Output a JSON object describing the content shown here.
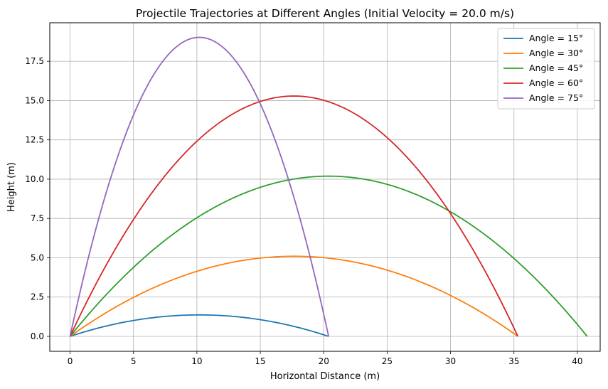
{
  "chart_data": {
    "type": "line",
    "title": "Projectile Trajectories at Different Angles (Initial Velocity = 20.0 m/s)",
    "xlabel": "Horizontal Distance (m)",
    "ylabel": "Height (m)",
    "xlim": [
      -1.6,
      41.8
    ],
    "ylim": [
      -0.95,
      19.95
    ],
    "xticks": [
      0,
      5,
      10,
      15,
      20,
      25,
      30,
      35,
      40
    ],
    "xtick_labels": [
      "0",
      "5",
      "10",
      "15",
      "20",
      "25",
      "30",
      "35",
      "40"
    ],
    "yticks": [
      0,
      2.5,
      5,
      7.5,
      10,
      12.5,
      15,
      17.5
    ],
    "ytick_labels": [
      "0.0",
      "2.5",
      "5.0",
      "7.5",
      "10.0",
      "12.5",
      "15.0",
      "17.5"
    ],
    "grid": true,
    "legend_position": "top-right",
    "initial_velocity": 20.0,
    "g": 9.81,
    "series": [
      {
        "name": "Angle = 15°",
        "angle_deg": 15,
        "color": "#1f77b4"
      },
      {
        "name": "Angle = 30°",
        "angle_deg": 30,
        "color": "#ff7f0e"
      },
      {
        "name": "Angle = 45°",
        "angle_deg": 45,
        "color": "#2ca02c"
      },
      {
        "name": "Angle = 60°",
        "angle_deg": 60,
        "color": "#d62728"
      },
      {
        "name": "Angle = 75°",
        "angle_deg": 75,
        "color": "#9467bd"
      }
    ]
  }
}
